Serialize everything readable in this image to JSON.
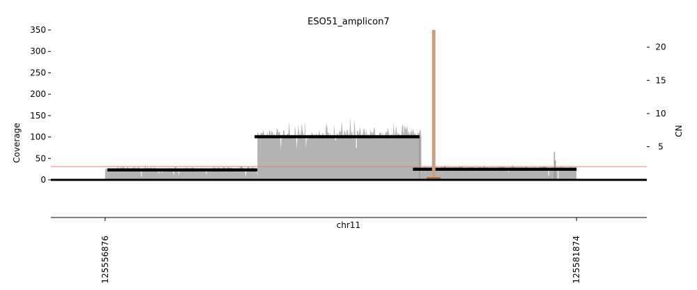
{
  "chart_data": {
    "type": "area",
    "title": "ESO51_amplicon7",
    "xlabel": "chr11",
    "ylabel": "Coverage",
    "y2label": "CN",
    "xlim": [
      125554000,
      125585600
    ],
    "ylim": [
      0,
      350
    ],
    "y2lim": [
      0,
      22.6
    ],
    "yticks": [
      0,
      50,
      100,
      150,
      200,
      250,
      300,
      350
    ],
    "y2ticks": [
      5,
      10,
      15,
      20
    ],
    "xticks": [
      125556876,
      125581874
    ],
    "xtick_labels": [
      "125556876",
      "125581874"
    ],
    "grid": false,
    "legend": "none",
    "colors": {
      "coverage": "#b3b3b3",
      "cn_segment": "#000000",
      "baseline": "#e08080",
      "discordant_marker": "#c8a080",
      "discordant_marker_dark": "#b07040"
    },
    "coverage_regions": [
      {
        "start": 125556876,
        "end": 125564950,
        "mean": 26,
        "variation": 7
      },
      {
        "start": 125564950,
        "end": 125573650,
        "mean": 108,
        "variation": 20
      },
      {
        "start": 125573650,
        "end": 125581874,
        "mean": 28,
        "variation": 5
      }
    ],
    "coverage_spikes": [
      {
        "x": 125573550,
        "value": 102
      },
      {
        "x": 125580700,
        "value": 65
      },
      {
        "x": 125580750,
        "value": 45
      }
    ],
    "coverage_dips": [
      {
        "x": 125558800,
        "value": 8
      },
      {
        "x": 125570200,
        "value": 75
      },
      {
        "x": 125580900,
        "value": 2
      },
      {
        "x": 125580400,
        "value": 10
      }
    ],
    "cn_segments": [
      {
        "start": 125557000,
        "end": 125564950,
        "cn": 1.5
      },
      {
        "start": 125564800,
        "end": 125573550,
        "cn": 6.5
      },
      {
        "start": 125573200,
        "end": 125581874,
        "cn": 1.6
      }
    ],
    "cn_baseline": 2,
    "discordant_marker": {
      "x": 125574300,
      "cn_top": 22.6
    }
  }
}
